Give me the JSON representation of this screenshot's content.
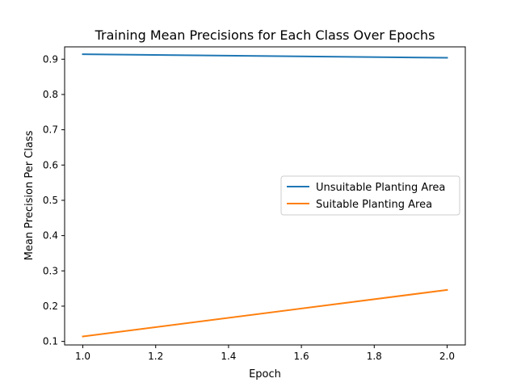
{
  "chart_data": {
    "type": "line",
    "title": "Training Mean Precisions for Each Class Over Epochs",
    "xlabel": "Epoch",
    "ylabel": "Mean Precision Per Class",
    "x": [
      1.0,
      2.0
    ],
    "xlim": [
      0.95,
      2.05
    ],
    "ylim": [
      0.09,
      0.935
    ],
    "xticks": [
      1.0,
      1.2,
      1.4,
      1.6,
      1.8,
      2.0
    ],
    "xtick_labels": [
      "1.0",
      "1.2",
      "1.4",
      "1.6",
      "1.8",
      "2.0"
    ],
    "yticks": [
      0.1,
      0.2,
      0.3,
      0.4,
      0.5,
      0.6,
      0.7,
      0.8,
      0.9
    ],
    "ytick_labels": [
      "0.1",
      "0.2",
      "0.3",
      "0.4",
      "0.5",
      "0.6",
      "0.7",
      "0.8",
      "0.9"
    ],
    "grid": false,
    "legend_position": "center-right",
    "series": [
      {
        "name": "Unsuitable Planting Area",
        "values": [
          0.914,
          0.904
        ],
        "color": "#1f77b4"
      },
      {
        "name": "Suitable Planting Area",
        "values": [
          0.114,
          0.246
        ],
        "color": "#ff7f0e"
      }
    ]
  }
}
